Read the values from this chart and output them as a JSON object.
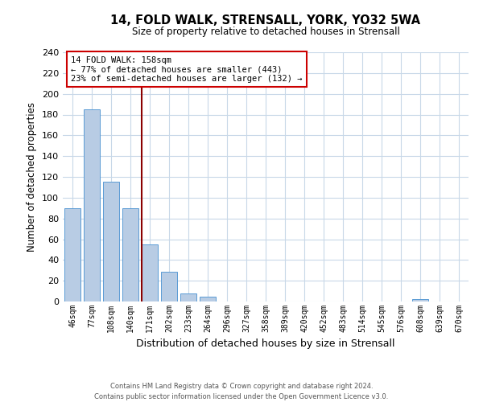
{
  "title": "14, FOLD WALK, STRENSALL, YORK, YO32 5WA",
  "subtitle": "Size of property relative to detached houses in Strensall",
  "xlabel": "Distribution of detached houses by size in Strensall",
  "ylabel": "Number of detached properties",
  "bar_values": [
    90,
    185,
    115,
    90,
    55,
    29,
    8,
    5,
    0,
    0,
    0,
    0,
    0,
    0,
    0,
    0,
    0,
    0,
    2,
    0,
    0
  ],
  "bar_labels": [
    "46sqm",
    "77sqm",
    "108sqm",
    "140sqm",
    "171sqm",
    "202sqm",
    "233sqm",
    "264sqm",
    "296sqm",
    "327sqm",
    "358sqm",
    "389sqm",
    "420sqm",
    "452sqm",
    "483sqm",
    "514sqm",
    "545sqm",
    "576sqm",
    "608sqm",
    "639sqm",
    "670sqm"
  ],
  "bar_color": "#b8cce4",
  "bar_edge_color": "#5b9bd5",
  "vline_x": 3.6,
  "vline_color": "#8b0000",
  "annotation_box_color": "#ffffff",
  "annotation_border_color": "#cc0000",
  "annotation_title": "14 FOLD WALK: 158sqm",
  "annotation_line1": "← 77% of detached houses are smaller (443)",
  "annotation_line2": "23% of semi-detached houses are larger (132) →",
  "ylim": [
    0,
    240
  ],
  "yticks": [
    0,
    20,
    40,
    60,
    80,
    100,
    120,
    140,
    160,
    180,
    200,
    220,
    240
  ],
  "footer1": "Contains HM Land Registry data © Crown copyright and database right 2024.",
  "footer2": "Contains public sector information licensed under the Open Government Licence v3.0.",
  "bg_color": "#ffffff",
  "grid_color": "#c8d8e8"
}
